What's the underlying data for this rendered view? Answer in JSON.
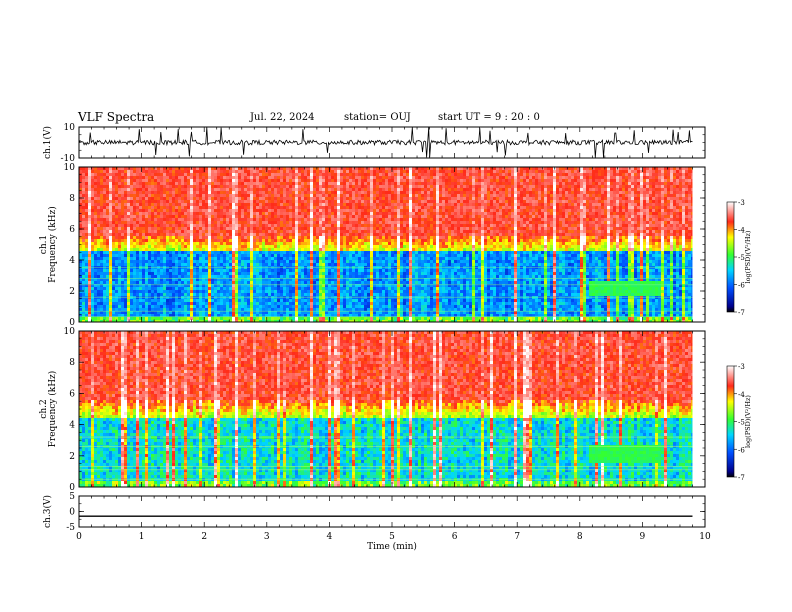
{
  "header": {
    "title": "VLF Spectra",
    "date": "Jul. 22, 2024",
    "station": "station= OUJ",
    "start_time": "start  UT =  9 : 20 : 0"
  },
  "colors": {
    "spectrum_low": "#00008b",
    "spectrum_mid_low": "#00bfff",
    "spectrum_mid": "#33ff33",
    "spectrum_mid_high": "#ffff00",
    "spectrum_high": "#ff2a1a",
    "spectrum_top": "#ffffff"
  },
  "chart_data": [
    {
      "type": "line",
      "panel": "ch1-waveform",
      "ylabel": "ch.1(V)",
      "ylim": [
        -10,
        10
      ],
      "yticks": [
        "10",
        "-10"
      ],
      "xlim": [
        0,
        10
      ],
      "series": [
        {
          "x_end": 9.8,
          "baseline": 0,
          "noise_amplitude": 3
        }
      ]
    },
    {
      "type": "heatmap",
      "panel": "ch1-spectrogram",
      "ylabel": "ch.1\nFrequency  (kHz)",
      "ylim": [
        0,
        10
      ],
      "yticks": [
        "0",
        "2",
        "4",
        "6",
        "8",
        "10"
      ],
      "xlim": [
        0,
        10
      ],
      "data_end_min": 9.8,
      "colorbar": {
        "label": "log(PSD)(V²/Hz)",
        "ticks": [
          "-3",
          "-4",
          "-5",
          "-6",
          "-7"
        ],
        "range": [
          -7,
          -3
        ]
      }
    },
    {
      "type": "heatmap",
      "panel": "ch2-spectrogram",
      "ylabel": "ch.2\nFrequency  (kHz)",
      "ylim": [
        0,
        10
      ],
      "yticks": [
        "0",
        "2",
        "4",
        "6",
        "8",
        "10"
      ],
      "xlim": [
        0,
        10
      ],
      "data_end_min": 9.8,
      "colorbar": {
        "label": "log(PSD)(V²/Hz)",
        "ticks": [
          "-3",
          "-4",
          "-5",
          "-6",
          "-7"
        ],
        "range": [
          -7,
          -3
        ]
      }
    },
    {
      "type": "line",
      "panel": "ch3-waveform",
      "ylabel": "ch.3(V)",
      "ylim": [
        -5,
        5
      ],
      "yticks": [
        "5",
        "0",
        "-5"
      ],
      "xlim": [
        0,
        10
      ],
      "series": [
        {
          "x": [
            0,
            9.8
          ],
          "y": [
            -1.5,
            -1.5
          ]
        }
      ]
    }
  ],
  "xaxis": {
    "label": "Time  (min)",
    "ticks": [
      "0",
      "1",
      "2",
      "3",
      "4",
      "5",
      "6",
      "7",
      "8",
      "9",
      "10"
    ]
  }
}
